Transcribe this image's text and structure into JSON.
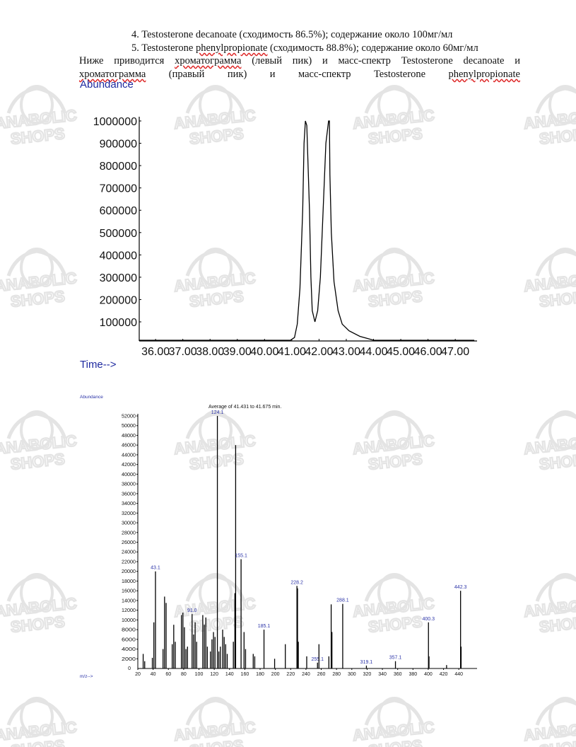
{
  "document": {
    "line4": "4.  Testosterone decanoate (сходимость 86.5%); содержание около 100мг/мл",
    "line5_pre": "5. Testosterone ",
    "line5_squiggle": "phenylpropionate",
    "line5_post": " (сходимость 88.8%); содержание около 60мг/мл",
    "para_line1": [
      "Ниже",
      "приводится",
      "хроматограмма",
      "(левый",
      "пик)",
      "и",
      "масс-спектр",
      "Testosterone",
      "decanoate",
      "и"
    ],
    "para_line2": [
      "хроматограмма",
      "(правый",
      "пик)",
      "и",
      "масс-спектр",
      "Testosterone",
      "phenylpropionate"
    ],
    "squiggle_words": [
      "хроматограмма",
      "phenylpropionate"
    ]
  },
  "watermark": {
    "line1": "ANABOLIC",
    "line2": "SHOPS",
    "color": "#e4e4e4"
  },
  "chart_data": [
    {
      "type": "line",
      "ylabel": "Abundance",
      "xlabel": "Time-->",
      "xlim": [
        35.4,
        47.8
      ],
      "ylim": [
        0,
        1000000
      ],
      "y_ticks": [
        100000,
        200000,
        300000,
        400000,
        500000,
        600000,
        700000,
        800000,
        900000,
        1000000
      ],
      "y_tick_labels": [
        "100000",
        "200000",
        "300000",
        "400000",
        "500000",
        "600000",
        "700000",
        "800000",
        "900000",
        "1000000"
      ],
      "x_ticks": [
        36,
        37,
        38,
        39,
        40,
        41,
        42,
        43,
        44,
        45,
        46,
        47
      ],
      "x_tick_labels": [
        "36.00",
        "37.00",
        "38.00",
        "39.00",
        "40.00",
        "41.00",
        "42.00",
        "43.00",
        "44.00",
        "45.00",
        "46.00",
        "47.00"
      ],
      "series": [
        {
          "points": [
            [
              35.4,
              0
            ],
            [
              40.4,
              0
            ],
            [
              40.8,
              3000
            ],
            [
              40.95,
              10000
            ],
            [
              41.1,
              30000
            ],
            [
              41.2,
              90000
            ],
            [
              41.3,
              250000
            ],
            [
              41.4,
              600000
            ],
            [
              41.45,
              900000
            ],
            [
              41.5,
              1000000
            ],
            [
              41.55,
              980000
            ],
            [
              41.65,
              600000
            ],
            [
              41.7,
              300000
            ],
            [
              41.75,
              150000
            ],
            [
              41.85,
              100000
            ],
            [
              41.95,
              150000
            ],
            [
              42.05,
              300000
            ],
            [
              42.15,
              600000
            ],
            [
              42.25,
              900000
            ],
            [
              42.35,
              1000000
            ],
            [
              42.38,
              1000000
            ],
            [
              42.4,
              760000
            ],
            [
              42.45,
              500000
            ],
            [
              42.55,
              280000
            ],
            [
              42.7,
              150000
            ],
            [
              42.85,
              90000
            ],
            [
              43.1,
              60000
            ],
            [
              43.5,
              35000
            ],
            [
              44.0,
              18000
            ],
            [
              44.5,
              10000
            ],
            [
              45.0,
              6000
            ],
            [
              46.0,
              3000
            ],
            [
              47.7,
              1500
            ]
          ]
        }
      ],
      "color": "#000000"
    },
    {
      "type": "bar",
      "title": "Average of 41.431 to 41.675 min.",
      "ylabel": "Abundance",
      "xlabel": "m/z-->",
      "xlim": [
        20,
        450
      ],
      "ylim": [
        0,
        52000
      ],
      "x_ticks": [
        20,
        40,
        60,
        80,
        100,
        120,
        140,
        160,
        180,
        200,
        220,
        240,
        260,
        280,
        300,
        320,
        340,
        360,
        380,
        400,
        420,
        440
      ],
      "y_ticks": [
        2000,
        4000,
        6000,
        8000,
        10000,
        12000,
        14000,
        16000,
        18000,
        20000,
        22000,
        24000,
        26000,
        28000,
        30000,
        32000,
        34000,
        36000,
        38000,
        40000,
        42000,
        44000,
        46000,
        48000,
        50000,
        52000
      ],
      "y_tick_labels": [
        "2000",
        "4000",
        "6000",
        "8000",
        "10000",
        "12000",
        "14000",
        "16000",
        "18000",
        "20000",
        "22000",
        "24000",
        "26000",
        "28000",
        "30000",
        "32000",
        "34000",
        "36000",
        "38000",
        "40000",
        "42000",
        "44000",
        "46000",
        "48000",
        "50000",
        "52000"
      ],
      "x_tick_labels": [
        "20",
        "40",
        "60",
        "80",
        "100",
        "120",
        "140",
        "160",
        "180",
        "200",
        "220",
        "240",
        "260",
        "280",
        "300",
        "320",
        "340",
        "360",
        "380",
        "400",
        "420",
        "440"
      ],
      "y_zero_label": "0",
      "peaks": [
        {
          "mz": 27,
          "abundance": 3000
        },
        {
          "mz": 29,
          "abundance": 1500
        },
        {
          "mz": 39,
          "abundance": 2200
        },
        {
          "mz": 41,
          "abundance": 9500
        },
        {
          "mz": 43.1,
          "abundance": 20000,
          "label": "43.1"
        },
        {
          "mz": 53,
          "abundance": 4000
        },
        {
          "mz": 55,
          "abundance": 14800
        },
        {
          "mz": 57,
          "abundance": 13500
        },
        {
          "mz": 65,
          "abundance": 5000
        },
        {
          "mz": 67,
          "abundance": 9000
        },
        {
          "mz": 69,
          "abundance": 5500
        },
        {
          "mz": 77,
          "abundance": 11000
        },
        {
          "mz": 79,
          "abundance": 11500
        },
        {
          "mz": 81,
          "abundance": 8500
        },
        {
          "mz": 83,
          "abundance": 4000
        },
        {
          "mz": 85,
          "abundance": 4500
        },
        {
          "mz": 91.0,
          "abundance": 11200,
          "label": "91.0"
        },
        {
          "mz": 93,
          "abundance": 7000
        },
        {
          "mz": 95,
          "abundance": 9500
        },
        {
          "mz": 97,
          "abundance": 5500
        },
        {
          "mz": 105,
          "abundance": 11000
        },
        {
          "mz": 107,
          "abundance": 9000
        },
        {
          "mz": 109,
          "abundance": 10500
        },
        {
          "mz": 111,
          "abundance": 4500
        },
        {
          "mz": 115,
          "abundance": 3500
        },
        {
          "mz": 117,
          "abundance": 6000
        },
        {
          "mz": 119,
          "abundance": 7500
        },
        {
          "mz": 121,
          "abundance": 6500
        },
        {
          "mz": 124.1,
          "abundance": 52000,
          "label": "124.1"
        },
        {
          "mz": 126,
          "abundance": 3500
        },
        {
          "mz": 128,
          "abundance": 4500
        },
        {
          "mz": 131,
          "abundance": 8000
        },
        {
          "mz": 133,
          "abundance": 6500
        },
        {
          "mz": 135,
          "abundance": 5000
        },
        {
          "mz": 137,
          "abundance": 3000
        },
        {
          "mz": 145,
          "abundance": 5500
        },
        {
          "mz": 147,
          "abundance": 15500
        },
        {
          "mz": 148,
          "abundance": 46000
        },
        {
          "mz": 155.1,
          "abundance": 22500,
          "label": "155.1"
        },
        {
          "mz": 159,
          "abundance": 7500
        },
        {
          "mz": 161,
          "abundance": 4000
        },
        {
          "mz": 171,
          "abundance": 3000
        },
        {
          "mz": 173,
          "abundance": 2500
        },
        {
          "mz": 185.1,
          "abundance": 8000,
          "label": "185.1"
        },
        {
          "mz": 199,
          "abundance": 2000
        },
        {
          "mz": 213,
          "abundance": 5000
        },
        {
          "mz": 228.2,
          "abundance": 17000,
          "label": "228.2"
        },
        {
          "mz": 229,
          "abundance": 16500
        },
        {
          "mz": 230,
          "abundance": 5500
        },
        {
          "mz": 241,
          "abundance": 2500
        },
        {
          "mz": 255.1,
          "abundance": 1200,
          "label": "255.1"
        },
        {
          "mz": 257,
          "abundance": 5000
        },
        {
          "mz": 270,
          "abundance": 2500
        },
        {
          "mz": 273,
          "abundance": 13200
        },
        {
          "mz": 274,
          "abundance": 7500
        },
        {
          "mz": 288.1,
          "abundance": 13300,
          "label": "288.1"
        },
        {
          "mz": 319.1,
          "abundance": 600,
          "label": "319.1"
        },
        {
          "mz": 357.1,
          "abundance": 1500,
          "label": "357.1"
        },
        {
          "mz": 400.3,
          "abundance": 9500,
          "label": "400.3"
        },
        {
          "mz": 401,
          "abundance": 2500
        },
        {
          "mz": 424,
          "abundance": 700
        },
        {
          "mz": 442.3,
          "abundance": 16000,
          "label": "442.3"
        },
        {
          "mz": 443,
          "abundance": 4500
        }
      ],
      "label_color": "#2c34a8"
    }
  ]
}
